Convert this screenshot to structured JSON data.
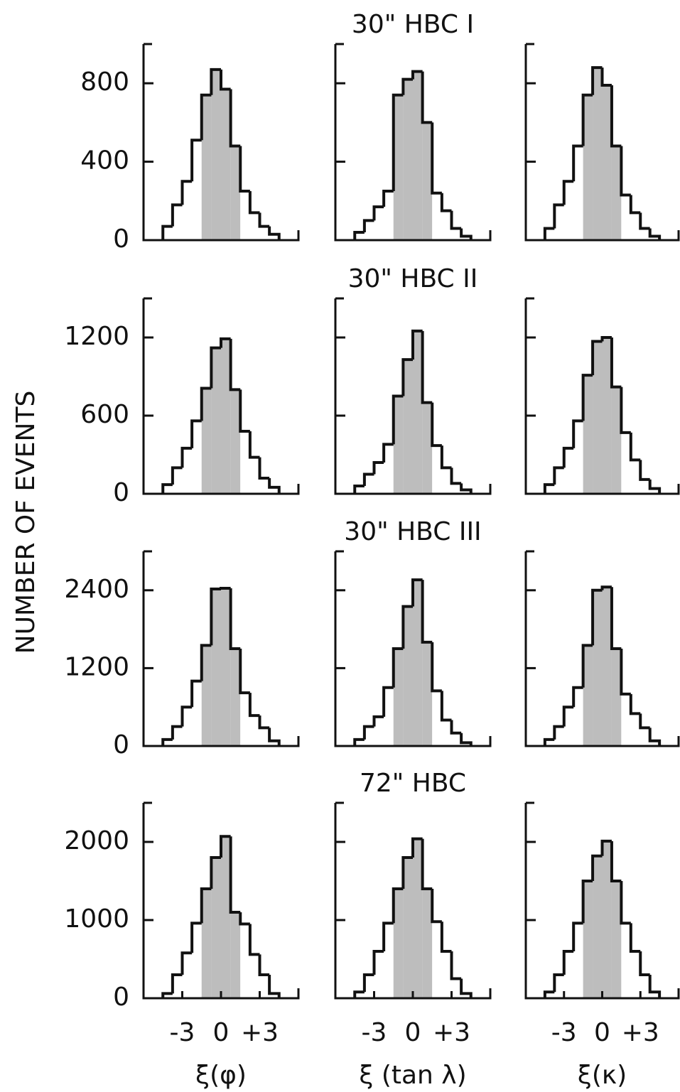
{
  "y_label": "NUMBER OF EVENTS",
  "chart_data": [
    {
      "type": "histogram",
      "bins": [
        -4.5,
        -3.75,
        -3,
        -2.25,
        -1.5,
        -0.75,
        0,
        0.75,
        1.5,
        2.25,
        3,
        3.75,
        4.5
      ],
      "values": [
        70,
        180,
        300,
        510,
        740,
        870,
        770,
        480,
        250,
        140,
        70,
        30
      ],
      "xlim": [
        -6,
        6
      ],
      "ylim": [
        0,
        1000
      ],
      "yticks": [
        0,
        400,
        800
      ],
      "shaded_range": [
        -1.5,
        1.5
      ],
      "color": "#111111",
      "shade_color": "#bdbdbd"
    },
    {
      "type": "histogram",
      "title": "30\" HBC I",
      "bins": [
        -4.5,
        -3.75,
        -3,
        -2.25,
        -1.5,
        -0.75,
        0,
        0.75,
        1.5,
        2.25,
        3,
        3.75,
        4.5
      ],
      "values": [
        40,
        100,
        170,
        250,
        740,
        820,
        860,
        600,
        240,
        150,
        60,
        20
      ],
      "xlim": [
        -6,
        6
      ],
      "ylim": [
        0,
        1000
      ],
      "yticks": [
        0,
        400,
        800
      ],
      "shaded_range": [
        -1.5,
        1.5
      ],
      "color": "#111111",
      "shade_color": "#bdbdbd"
    },
    {
      "type": "histogram",
      "bins": [
        -4.5,
        -3.75,
        -3,
        -2.25,
        -1.5,
        -0.75,
        0,
        0.75,
        1.5,
        2.25,
        3,
        3.75,
        4.5
      ],
      "values": [
        60,
        180,
        300,
        480,
        740,
        880,
        790,
        480,
        230,
        140,
        60,
        20
      ],
      "xlim": [
        -6,
        6
      ],
      "ylim": [
        0,
        1000
      ],
      "yticks": [
        0,
        400,
        800
      ],
      "shaded_range": [
        -1.5,
        1.5
      ],
      "color": "#111111",
      "shade_color": "#bdbdbd"
    },
    {
      "type": "histogram",
      "bins": [
        -4.5,
        -3.75,
        -3,
        -2.25,
        -1.5,
        -0.75,
        0,
        0.75,
        1.5,
        2.25,
        3,
        3.75,
        4.5
      ],
      "values": [
        70,
        200,
        350,
        560,
        810,
        1120,
        1190,
        800,
        480,
        280,
        120,
        50
      ],
      "xlim": [
        -6,
        6
      ],
      "ylim": [
        0,
        1500
      ],
      "yticks": [
        0,
        600,
        1200
      ],
      "shaded_range": [
        -1.5,
        1.5
      ],
      "color": "#111111",
      "shade_color": "#bdbdbd"
    },
    {
      "type": "histogram",
      "title": "30\" HBC II",
      "bins": [
        -4.5,
        -3.75,
        -3,
        -2.25,
        -1.5,
        -0.75,
        0,
        0.75,
        1.5,
        2.25,
        3,
        3.75,
        4.5
      ],
      "values": [
        60,
        150,
        240,
        380,
        750,
        1030,
        1250,
        700,
        370,
        200,
        80,
        30
      ],
      "xlim": [
        -6,
        6
      ],
      "ylim": [
        0,
        1500
      ],
      "yticks": [
        0,
        600,
        1200
      ],
      "shaded_range": [
        -1.5,
        1.5
      ],
      "color": "#111111",
      "shade_color": "#bdbdbd"
    },
    {
      "type": "histogram",
      "bins": [
        -4.5,
        -3.75,
        -3,
        -2.25,
        -1.5,
        -0.75,
        0,
        0.75,
        1.5,
        2.25,
        3,
        3.75,
        4.5
      ],
      "values": [
        70,
        200,
        350,
        560,
        910,
        1170,
        1200,
        820,
        470,
        260,
        110,
        40
      ],
      "xlim": [
        -6,
        6
      ],
      "ylim": [
        0,
        1500
      ],
      "yticks": [
        0,
        600,
        1200
      ],
      "shaded_range": [
        -1.5,
        1.5
      ],
      "color": "#111111",
      "shade_color": "#bdbdbd"
    },
    {
      "type": "histogram",
      "bins": [
        -4.5,
        -3.75,
        -3,
        -2.25,
        -1.5,
        -0.75,
        0,
        0.75,
        1.5,
        2.25,
        3,
        3.75,
        4.5
      ],
      "values": [
        100,
        300,
        600,
        1000,
        1550,
        2420,
        2430,
        1500,
        820,
        470,
        280,
        80
      ],
      "xlim": [
        -6,
        6
      ],
      "ylim": [
        0,
        3000
      ],
      "yticks": [
        0,
        1200,
        2400
      ],
      "shaded_range": [
        -1.5,
        1.5
      ],
      "color": "#111111",
      "shade_color": "#bdbdbd"
    },
    {
      "type": "histogram",
      "title": "30\" HBC III",
      "bins": [
        -4.5,
        -3.75,
        -3,
        -2.25,
        -1.5,
        -0.75,
        0,
        0.75,
        1.5,
        2.25,
        3,
        3.75,
        4.5
      ],
      "values": [
        100,
        300,
        450,
        900,
        1500,
        2150,
        2560,
        1600,
        850,
        400,
        200,
        50
      ],
      "xlim": [
        -6,
        6
      ],
      "ylim": [
        0,
        3000
      ],
      "yticks": [
        0,
        1200,
        2400
      ],
      "shaded_range": [
        -1.5,
        1.5
      ],
      "color": "#111111",
      "shade_color": "#bdbdbd"
    },
    {
      "type": "histogram",
      "bins": [
        -4.5,
        -3.75,
        -3,
        -2.25,
        -1.5,
        -0.75,
        0,
        0.75,
        1.5,
        2.25,
        3,
        3.75,
        4.5
      ],
      "values": [
        100,
        300,
        600,
        900,
        1550,
        2400,
        2450,
        1500,
        800,
        500,
        280,
        80
      ],
      "xlim": [
        -6,
        6
      ],
      "ylim": [
        0,
        3000
      ],
      "yticks": [
        0,
        1200,
        2400
      ],
      "shaded_range": [
        -1.5,
        1.5
      ],
      "color": "#111111",
      "shade_color": "#bdbdbd"
    },
    {
      "type": "histogram",
      "xlabel": "ξ(φ)",
      "bins": [
        -4.5,
        -3.75,
        -3,
        -2.25,
        -1.5,
        -0.75,
        0,
        0.75,
        1.5,
        2.25,
        3,
        3.75,
        4.5
      ],
      "values": [
        60,
        300,
        580,
        960,
        1400,
        1800,
        2070,
        1100,
        950,
        560,
        300,
        60
      ],
      "xlim": [
        -6,
        6
      ],
      "ylim": [
        0,
        2500
      ],
      "yticks": [
        0,
        1000,
        2000
      ],
      "xticks": [
        -3,
        0,
        {
          "value": 3,
          "label": "+3"
        }
      ],
      "shaded_range": [
        -1.5,
        1.5
      ],
      "color": "#111111",
      "shade_color": "#bdbdbd"
    },
    {
      "type": "histogram",
      "title": "72\" HBC",
      "xlabel": "ξ (tan λ)",
      "bins": [
        -4.5,
        -3.75,
        -3,
        -2.25,
        -1.5,
        -0.75,
        0,
        0.75,
        1.5,
        2.25,
        3,
        3.75,
        4.5
      ],
      "values": [
        80,
        300,
        600,
        960,
        1400,
        1800,
        2040,
        1400,
        980,
        600,
        250,
        60
      ],
      "xlim": [
        -6,
        6
      ],
      "ylim": [
        0,
        2500
      ],
      "yticks": [
        0,
        1000,
        2000
      ],
      "xticks": [
        -3,
        0,
        {
          "value": 3,
          "label": "+3"
        }
      ],
      "shaded_range": [
        -1.5,
        1.5
      ],
      "color": "#111111",
      "shade_color": "#bdbdbd"
    },
    {
      "type": "histogram",
      "xlabel": "ξ(κ)",
      "bins": [
        -4.5,
        -3.75,
        -3,
        -2.25,
        -1.5,
        -0.75,
        0,
        0.75,
        1.5,
        2.25,
        3,
        3.75,
        4.5
      ],
      "values": [
        80,
        300,
        600,
        960,
        1500,
        1820,
        2010,
        1500,
        960,
        600,
        300,
        80
      ],
      "xlim": [
        -6,
        6
      ],
      "ylim": [
        0,
        2500
      ],
      "yticks": [
        0,
        1000,
        2000
      ],
      "xticks": [
        -3,
        0,
        {
          "value": 3,
          "label": "+3"
        }
      ],
      "shaded_range": [
        -1.5,
        1.5
      ],
      "color": "#111111",
      "shade_color": "#bdbdbd"
    }
  ]
}
